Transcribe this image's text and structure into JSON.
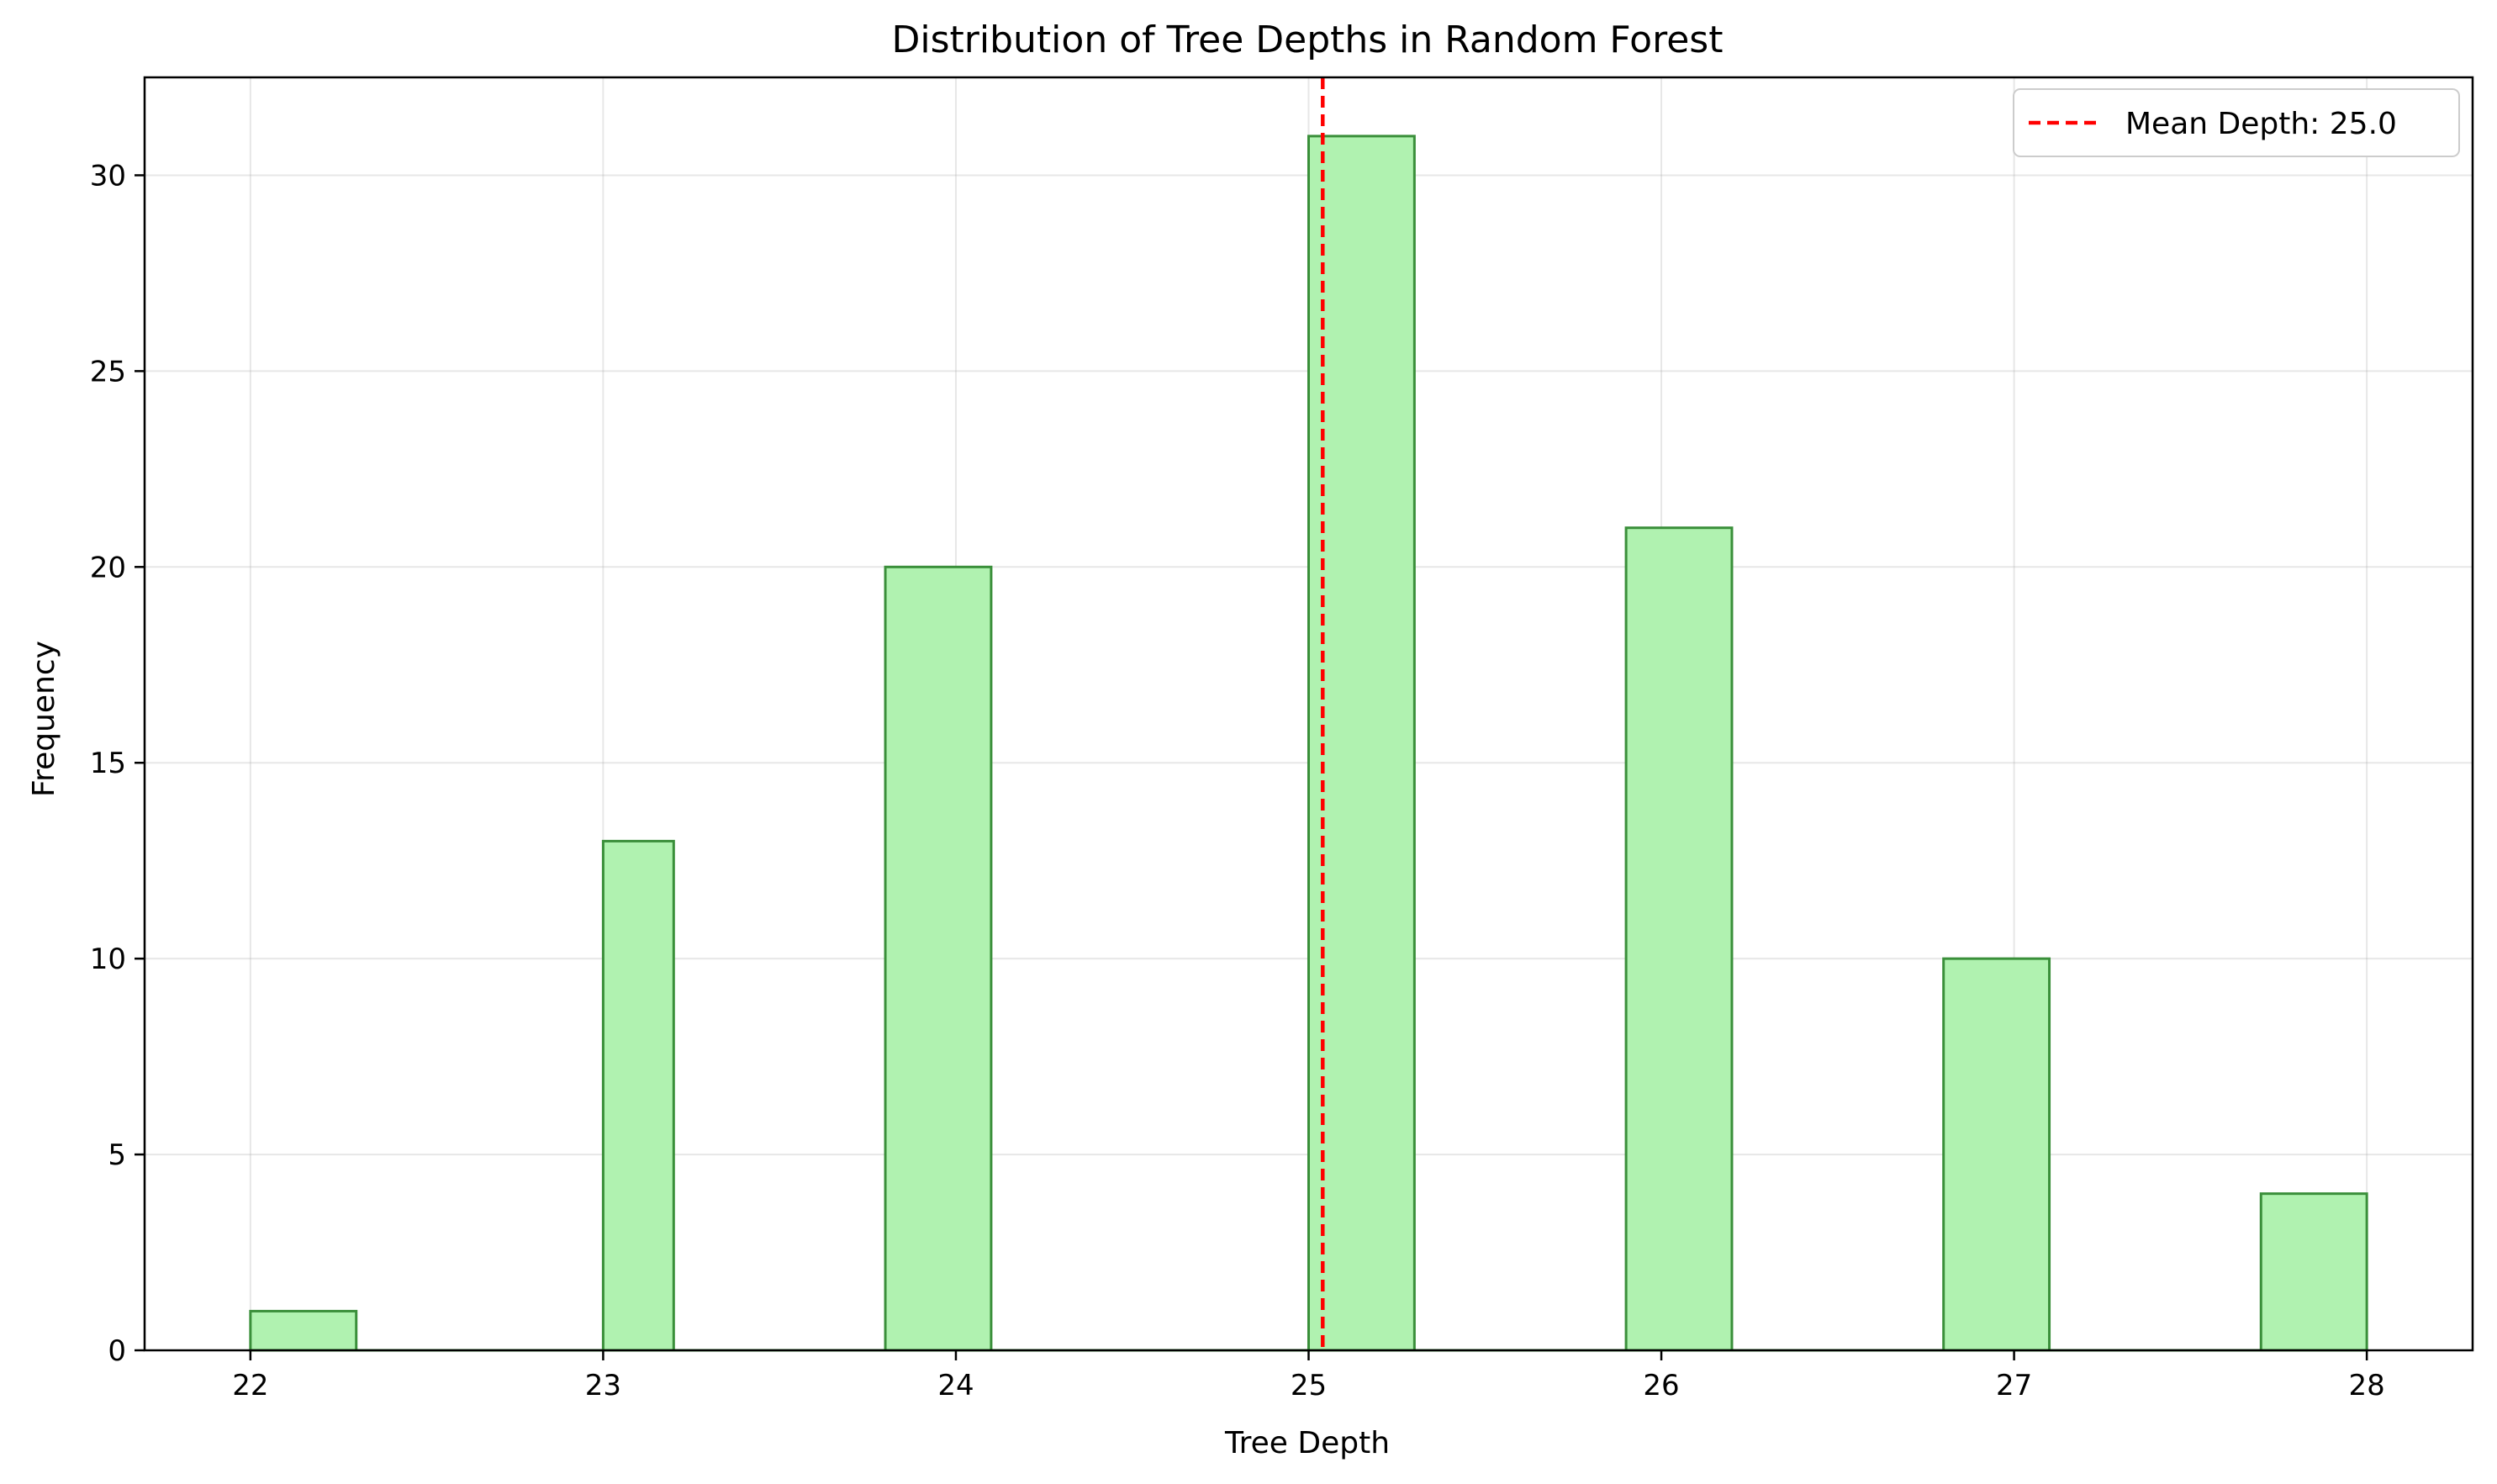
{
  "chart_data": {
    "type": "bar",
    "title": "Distribution of Tree Depths in Random Forest",
    "xlabel": "Tree Depth",
    "ylabel": "Frequency",
    "xlim": [
      21.7,
      28.3
    ],
    "ylim": [
      0,
      32.5
    ],
    "x_ticks": [
      "22",
      "23",
      "24",
      "25",
      "26",
      "27",
      "28"
    ],
    "y_ticks": [
      "0",
      "5",
      "10",
      "15",
      "20",
      "25",
      "30"
    ],
    "bins": [
      {
        "start": 22.0,
        "end": 22.3,
        "count": 1
      },
      {
        "start": 23.0,
        "end": 23.2,
        "count": 13
      },
      {
        "start": 23.8,
        "end": 24.1,
        "count": 20
      },
      {
        "start": 25.0,
        "end": 25.3,
        "count": 31
      },
      {
        "start": 25.9,
        "end": 26.2,
        "count": 21
      },
      {
        "start": 26.8,
        "end": 27.1,
        "count": 10
      },
      {
        "start": 27.7,
        "end": 28.0,
        "count": 4
      }
    ],
    "mean_line": {
      "value": 25.04,
      "label": "Mean Depth: 25.0",
      "color": "#ff0000",
      "style": "dashed"
    },
    "bar_fill": "#b0f2b0",
    "bar_edge": "#3a8f3a",
    "grid": true,
    "legend_position": "top-right"
  }
}
